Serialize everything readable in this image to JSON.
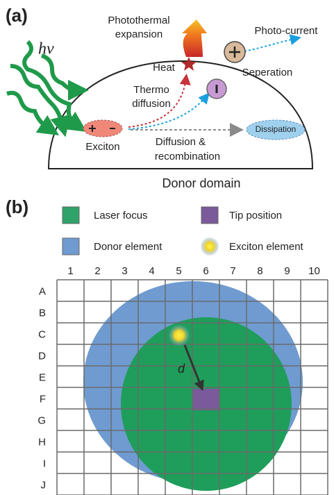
{
  "panel_a": {
    "label": "(a)",
    "photon": "hν",
    "photothermal": [
      "Photothermal",
      "expansion"
    ],
    "heat": "Heat",
    "thermo": [
      "Thermo",
      "diffusion"
    ],
    "photocurrent": "Photo-current",
    "separation": "Seperation",
    "exciton": "Exciton",
    "diffusion": [
      "Diffusion &",
      "recombination"
    ],
    "dissipation": "Dissipation",
    "domain": "Donor domain"
  },
  "panel_b": {
    "label": "(b)",
    "legend": [
      "Laser focus",
      "Tip position",
      "Donor element",
      "Exciton element"
    ],
    "columns": [
      "1",
      "2",
      "3",
      "4",
      "5",
      "6",
      "7",
      "8",
      "9",
      "10"
    ],
    "rows": [
      "A",
      "B",
      "C",
      "D",
      "E",
      "F",
      "G",
      "H",
      "I",
      "J"
    ],
    "distance": "d"
  }
}
